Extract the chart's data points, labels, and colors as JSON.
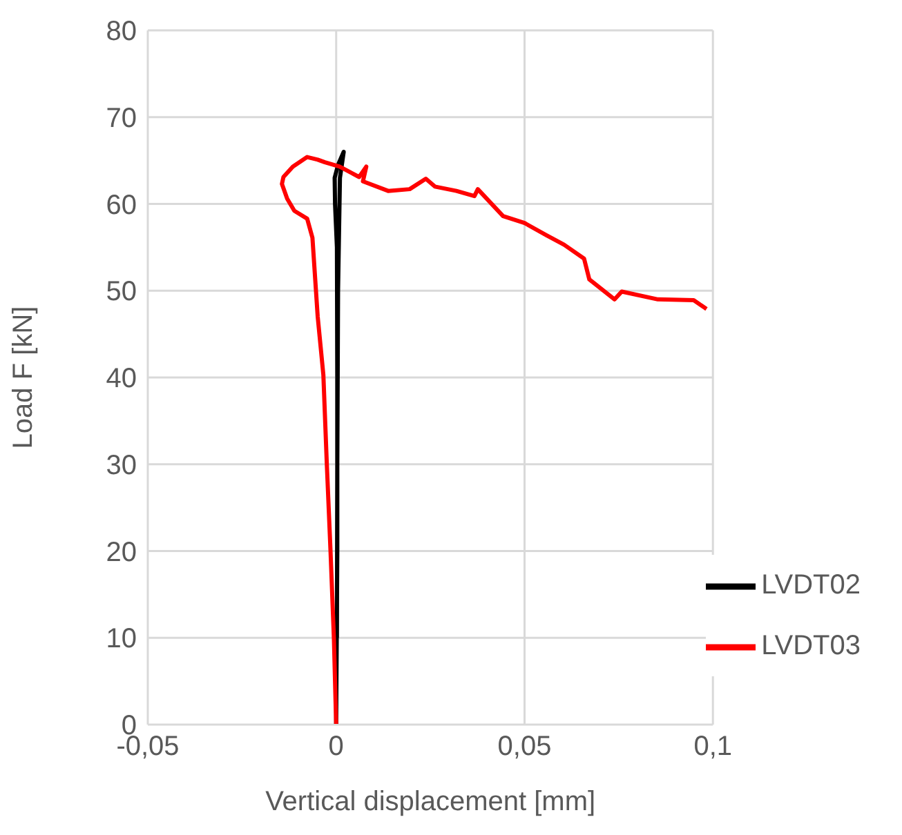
{
  "chart_data": {
    "type": "line",
    "xlabel": "Vertical displacement [mm]",
    "ylabel": "Load F [kN]",
    "xlim": [
      -0.05,
      0.1
    ],
    "xticks": [
      {
        "value": -0.05,
        "label": "-0,05"
      },
      0,
      {
        "value": 0.05,
        "label": "0,05"
      },
      {
        "value": 0.1,
        "label": "0,1"
      }
    ],
    "ylim": [
      0,
      80
    ],
    "yticks": [
      0,
      10,
      20,
      30,
      40,
      50,
      60,
      70,
      80
    ],
    "grid": true,
    "legend": "bottom right",
    "marker": "none",
    "line_style": "solid",
    "series": [
      {
        "name": "LVDT02",
        "color": "#000000",
        "x": [
          0,
          0.0003,
          0.0003,
          0.0002,
          -0.0003,
          -0.0004,
          0.0005,
          0.002,
          0.001,
          0.0005,
          0.0003,
          0.0002
        ],
        "values": [
          0,
          20,
          40,
          55,
          60,
          63,
          64.5,
          66,
          63,
          50,
          30,
          10
        ]
      },
      {
        "name": "LVDT03",
        "color": "#ff0000",
        "x": [
          0,
          -0.0006,
          -0.0015,
          -0.0025,
          -0.0034,
          -0.0049,
          -0.0063,
          -0.0077,
          -0.0111,
          -0.013,
          -0.0144,
          -0.014,
          -0.0115,
          -0.0077,
          -0.0049,
          -0.003,
          0.0009,
          0.0061,
          0.008,
          0.0071,
          0.0138,
          0.0195,
          0.0238,
          0.0262,
          0.0319,
          0.0367,
          0.0376,
          0.0443,
          0.05,
          0.0558,
          0.0605,
          0.0658,
          0.0672,
          0.0739,
          0.0758,
          0.0854,
          0.0949,
          0.0983
        ],
        "values": [
          0,
          9.9,
          20,
          30.2,
          40.3,
          47,
          56.1,
          58.3,
          59.2,
          60.6,
          62.3,
          63.1,
          64.3,
          65.4,
          65.1,
          64.8,
          64.3,
          63.1,
          64.3,
          62.6,
          61.5,
          61.7,
          62.9,
          62,
          61.5,
          60.9,
          61.7,
          58.6,
          57.8,
          56.4,
          55.3,
          53.7,
          51.3,
          49,
          49.9,
          49,
          48.9,
          47.9
        ]
      }
    ]
  }
}
